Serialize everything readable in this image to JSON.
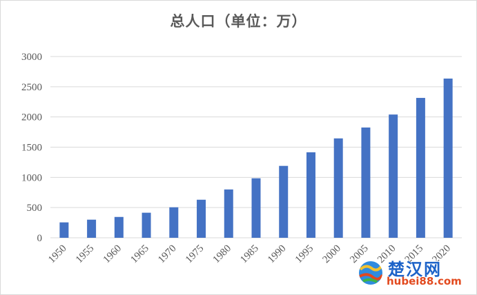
{
  "chart_data": {
    "type": "bar",
    "title": "总人口（单位：万）",
    "categories": [
      "1950",
      "1955",
      "1960",
      "1965",
      "1970",
      "1975",
      "1980",
      "1985",
      "1990",
      "1995",
      "2000",
      "2005",
      "2010",
      "2015",
      "2020"
    ],
    "series": [
      {
        "values": [
          255,
          300,
          345,
          415,
          505,
          630,
          800,
          985,
          1190,
          1415,
          1645,
          1825,
          2040,
          2315,
          2635
        ],
        "color": "#4472c4"
      }
    ],
    "ylim": [
      0,
      3000
    ],
    "yticks": [
      0,
      500,
      1000,
      1500,
      2000,
      2500,
      3000
    ],
    "xlabel": "",
    "ylabel": "",
    "grid": true,
    "legend": "none"
  },
  "watermark": {
    "name": "楚汉网",
    "url": "hubei88.com",
    "logo_icon": "globe-icon"
  },
  "colors": {
    "bar": "#4472c4",
    "grid": "#d9d9d9",
    "text": "#595959"
  }
}
